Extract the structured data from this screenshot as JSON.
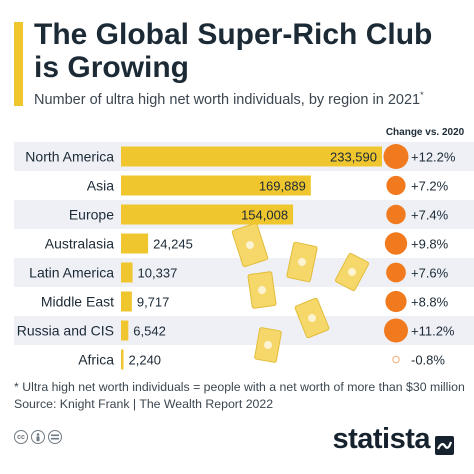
{
  "title": "The Global Super-Rich Club is Growing",
  "subtitle": "Number of ultra high net worth individuals, by region in 2021",
  "subtitle_mark": "*",
  "change_header": "Change vs. 2020",
  "footnote": "* Ultra high net worth individuals = people with a net worth of more than $30 million",
  "source": "Source: Knight Frank | The Wealth Report 2022",
  "brand": "statista",
  "logos": [
    "cc-icon",
    "attribution-icon",
    "no-derivatives-icon"
  ],
  "colors": {
    "bar": "#f0c62e",
    "dot": "#f07a1d",
    "dot_negative": "#f7b98a",
    "row_shade": "#eef0f6",
    "accent": "#f0c62e"
  },
  "chart_data": {
    "type": "bar",
    "orientation": "horizontal",
    "categories": [
      "North America",
      "Asia",
      "Europe",
      "Australasia",
      "Latin America",
      "Middle East",
      "Russia and CIS",
      "Africa"
    ],
    "values": [
      233590,
      169889,
      154008,
      24245,
      10337,
      9717,
      6542,
      2240
    ],
    "value_labels": [
      "233,590",
      "169,889",
      "154,008",
      "24,245",
      "10,337",
      "9,717",
      "6,542",
      "2,240"
    ],
    "change_values": [
      12.2,
      7.2,
      7.4,
      9.8,
      7.6,
      8.8,
      11.2,
      -0.8
    ],
    "change_labels": [
      "+12.2%",
      "+7.2%",
      "+7.4%",
      "+9.8%",
      "+7.6%",
      "+8.8%",
      "+11.2%",
      "-0.8%"
    ],
    "xlim": [
      0,
      233590
    ]
  }
}
